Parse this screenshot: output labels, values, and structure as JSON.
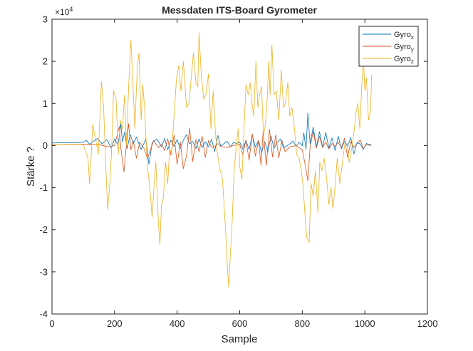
{
  "chart_data": {
    "type": "line",
    "title": "Messdaten ITS-Board Gyrometer",
    "xlabel": "Sample",
    "ylabel": "Stärke ?",
    "xlim": [
      0,
      1200
    ],
    "ylim": [
      -40000,
      30000
    ],
    "x_ticks": [
      0,
      200,
      400,
      600,
      800,
      1000,
      1200
    ],
    "y_ticks": [
      -40000,
      -30000,
      -20000,
      -10000,
      0,
      10000,
      20000,
      30000
    ],
    "y_tick_labels": [
      "-4",
      "-3",
      "-2",
      "-1",
      "0",
      "1",
      "2",
      "3"
    ],
    "y_exponent_base": "×10",
    "y_exponent_power": "4",
    "grid": false,
    "legend_position": "top-right",
    "series": [
      {
        "name": "Gyro",
        "name_sub": "x",
        "color": "#0072BD",
        "points": [
          [
            0,
            600
          ],
          [
            40,
            700
          ],
          [
            80,
            700
          ],
          [
            100,
            800
          ],
          [
            110,
            1200
          ],
          [
            120,
            300
          ],
          [
            130,
            900
          ],
          [
            145,
            1700
          ],
          [
            160,
            400
          ],
          [
            175,
            1400
          ],
          [
            190,
            -600
          ],
          [
            200,
            1600
          ],
          [
            210,
            300
          ],
          [
            215,
            2200
          ],
          [
            220,
            5200
          ],
          [
            225,
            900
          ],
          [
            232,
            3200
          ],
          [
            240,
            -700
          ],
          [
            250,
            2600
          ],
          [
            260,
            500
          ],
          [
            270,
            2000
          ],
          [
            285,
            -900
          ],
          [
            300,
            1500
          ],
          [
            310,
            -4500
          ],
          [
            320,
            600
          ],
          [
            335,
            1600
          ],
          [
            350,
            -300
          ],
          [
            360,
            1700
          ],
          [
            370,
            -1000
          ],
          [
            380,
            1300
          ],
          [
            390,
            -200
          ],
          [
            400,
            1400
          ],
          [
            410,
            -700
          ],
          [
            420,
            1300
          ],
          [
            430,
            2600
          ],
          [
            440,
            400
          ],
          [
            450,
            1000
          ],
          [
            460,
            -700
          ],
          [
            470,
            1600
          ],
          [
            480,
            -500
          ],
          [
            490,
            900
          ],
          [
            500,
            -300
          ],
          [
            510,
            1500
          ],
          [
            520,
            -1400
          ],
          [
            530,
            2400
          ],
          [
            540,
            -200
          ],
          [
            550,
            500
          ],
          [
            560,
            1000
          ],
          [
            570,
            -300
          ],
          [
            580,
            700
          ],
          [
            590,
            500
          ],
          [
            600,
            800
          ],
          [
            610,
            -800
          ],
          [
            620,
            1200
          ],
          [
            630,
            -1000
          ],
          [
            640,
            2500
          ],
          [
            650,
            -400
          ],
          [
            660,
            1200
          ],
          [
            670,
            -1700
          ],
          [
            680,
            900
          ],
          [
            690,
            -1400
          ],
          [
            700,
            2200
          ],
          [
            710,
            -600
          ],
          [
            720,
            700
          ],
          [
            730,
            1600
          ],
          [
            740,
            -600
          ],
          [
            760,
            400
          ],
          [
            770,
            1100
          ],
          [
            780,
            -200
          ],
          [
            790,
            800
          ],
          [
            800,
            -100
          ],
          [
            805,
            3000
          ],
          [
            812,
            -900
          ],
          [
            818,
            7700
          ],
          [
            825,
            400
          ],
          [
            835,
            4400
          ],
          [
            845,
            -300
          ],
          [
            855,
            3300
          ],
          [
            865,
            -400
          ],
          [
            875,
            3100
          ],
          [
            885,
            -600
          ],
          [
            895,
            1800
          ],
          [
            905,
            -1200
          ],
          [
            915,
            2200
          ],
          [
            925,
            -800
          ],
          [
            935,
            1000
          ],
          [
            945,
            -200
          ],
          [
            955,
            1900
          ],
          [
            965,
            -2000
          ],
          [
            975,
            700
          ],
          [
            985,
            400
          ],
          [
            995,
            -900
          ],
          [
            1005,
            500
          ],
          [
            1015,
            200
          ],
          [
            1020,
            300
          ]
        ]
      },
      {
        "name": "Gyro",
        "name_sub": "y",
        "color": "#D95319",
        "points": [
          [
            0,
            200
          ],
          [
            50,
            300
          ],
          [
            100,
            300
          ],
          [
            150,
            200
          ],
          [
            180,
            -300
          ],
          [
            200,
            0
          ],
          [
            210,
            3000
          ],
          [
            215,
            4500
          ],
          [
            220,
            -500
          ],
          [
            230,
            -6300
          ],
          [
            235,
            -2000
          ],
          [
            245,
            5200
          ],
          [
            252,
            -1000
          ],
          [
            260,
            1100
          ],
          [
            270,
            -3000
          ],
          [
            280,
            800
          ],
          [
            295,
            -800
          ],
          [
            305,
            -3100
          ],
          [
            315,
            -1000
          ],
          [
            325,
            1200
          ],
          [
            340,
            -500
          ],
          [
            350,
            400
          ],
          [
            360,
            -1200
          ],
          [
            370,
            1600
          ],
          [
            380,
            -2300
          ],
          [
            390,
            2500
          ],
          [
            400,
            -4500
          ],
          [
            410,
            900
          ],
          [
            420,
            -5500
          ],
          [
            430,
            -2500
          ],
          [
            440,
            4200
          ],
          [
            450,
            -3800
          ],
          [
            460,
            1500
          ],
          [
            470,
            -1500
          ],
          [
            480,
            2200
          ],
          [
            490,
            -2800
          ],
          [
            500,
            1200
          ],
          [
            510,
            -500
          ],
          [
            520,
            -300
          ],
          [
            530,
            500
          ],
          [
            540,
            -200
          ],
          [
            560,
            -500
          ],
          [
            580,
            0
          ],
          [
            600,
            300
          ],
          [
            610,
            -2200
          ],
          [
            620,
            1300
          ],
          [
            630,
            -3500
          ],
          [
            640,
            2800
          ],
          [
            650,
            -2500
          ],
          [
            660,
            1200
          ],
          [
            668,
            -4700
          ],
          [
            675,
            3500
          ],
          [
            685,
            -4700
          ],
          [
            695,
            3900
          ],
          [
            705,
            -2700
          ],
          [
            715,
            2500
          ],
          [
            725,
            -2900
          ],
          [
            735,
            1200
          ],
          [
            745,
            -1500
          ],
          [
            760,
            -300
          ],
          [
            780,
            0
          ],
          [
            800,
            -1000
          ],
          [
            810,
            -4800
          ],
          [
            818,
            -8400
          ],
          [
            825,
            -300
          ],
          [
            835,
            3300
          ],
          [
            845,
            -600
          ],
          [
            855,
            2200
          ],
          [
            865,
            -500
          ],
          [
            875,
            900
          ],
          [
            885,
            -800
          ],
          [
            895,
            500
          ],
          [
            905,
            -200
          ],
          [
            915,
            800
          ],
          [
            925,
            -500
          ],
          [
            935,
            1700
          ],
          [
            945,
            -2800
          ],
          [
            955,
            900
          ],
          [
            965,
            -500
          ],
          [
            975,
            400
          ],
          [
            985,
            1300
          ],
          [
            995,
            -700
          ],
          [
            1005,
            200
          ],
          [
            1020,
            0
          ]
        ]
      },
      {
        "name": "Gyro",
        "name_sub": "z",
        "color": "#EDB120",
        "points": [
          [
            0,
            200
          ],
          [
            60,
            300
          ],
          [
            100,
            200
          ],
          [
            115,
            -3000
          ],
          [
            120,
            -9000
          ],
          [
            125,
            -3000
          ],
          [
            130,
            5000
          ],
          [
            138,
            2000
          ],
          [
            148,
            -2000
          ],
          [
            158,
            15200
          ],
          [
            165,
            9000
          ],
          [
            172,
            -5000
          ],
          [
            178,
            -15300
          ],
          [
            185,
            -9000
          ],
          [
            190,
            -2000
          ],
          [
            197,
            13000
          ],
          [
            205,
            11000
          ],
          [
            212,
            -2000
          ],
          [
            218,
            6000
          ],
          [
            225,
            4000
          ],
          [
            232,
            12000
          ],
          [
            238,
            0
          ],
          [
            245,
            14000
          ],
          [
            252,
            25000
          ],
          [
            258,
            16000
          ],
          [
            265,
            4000
          ],
          [
            272,
            18000
          ],
          [
            278,
            22000
          ],
          [
            285,
            6000
          ],
          [
            290,
            14500
          ],
          [
            296,
            9000
          ],
          [
            305,
            -5000
          ],
          [
            310,
            -8000
          ],
          [
            315,
            -12000
          ],
          [
            320,
            -17000
          ],
          [
            325,
            -11000
          ],
          [
            332,
            -4000
          ],
          [
            340,
            -18000
          ],
          [
            345,
            -23600
          ],
          [
            350,
            -14000
          ],
          [
            356,
            -12500
          ],
          [
            363,
            -4000
          ],
          [
            370,
            -9000
          ],
          [
            376,
            -700
          ],
          [
            382,
            -2000
          ],
          [
            390,
            7000
          ],
          [
            398,
            16000
          ],
          [
            405,
            19000
          ],
          [
            412,
            13000
          ],
          [
            420,
            20000
          ],
          [
            430,
            9000
          ],
          [
            438,
            10000
          ],
          [
            445,
            16000
          ],
          [
            452,
            22000
          ],
          [
            460,
            15000
          ],
          [
            466,
            14000
          ],
          [
            470,
            26800
          ],
          [
            477,
            17000
          ],
          [
            485,
            11000
          ],
          [
            492,
            12000
          ],
          [
            500,
            17000
          ],
          [
            508,
            4000
          ],
          [
            515,
            13000
          ],
          [
            522,
            3500
          ],
          [
            528,
            -1500
          ],
          [
            535,
            -5000
          ],
          [
            545,
            -8000
          ],
          [
            555,
            -20000
          ],
          [
            560,
            -28000
          ],
          [
            565,
            -33700
          ],
          [
            570,
            -26000
          ],
          [
            576,
            -18000
          ],
          [
            582,
            -6000
          ],
          [
            588,
            -1000
          ],
          [
            595,
            4000
          ],
          [
            600,
            -5000
          ],
          [
            607,
            -8000
          ],
          [
            614,
            4000
          ],
          [
            620,
            14500
          ],
          [
            627,
            12000
          ],
          [
            633,
            15000
          ],
          [
            640,
            9500
          ],
          [
            645,
            7000
          ],
          [
            652,
            20000
          ],
          [
            658,
            9000
          ],
          [
            663,
            12000
          ],
          [
            670,
            14000
          ],
          [
            676,
            2000
          ],
          [
            682,
            5000
          ],
          [
            688,
            11000
          ],
          [
            693,
            20000
          ],
          [
            697,
            12000
          ],
          [
            703,
            23900
          ],
          [
            710,
            12000
          ],
          [
            717,
            13000
          ],
          [
            725,
            6000
          ],
          [
            733,
            18000
          ],
          [
            740,
            9000
          ],
          [
            746,
            10000
          ],
          [
            754,
            15000
          ],
          [
            760,
            7000
          ],
          [
            767,
            9000
          ],
          [
            775,
            4000
          ],
          [
            782,
            -2000
          ],
          [
            790,
            -3000
          ],
          [
            797,
            -6000
          ],
          [
            803,
            -10000
          ],
          [
            810,
            -18000
          ],
          [
            815,
            -22000
          ],
          [
            822,
            -23000
          ],
          [
            828,
            -9000
          ],
          [
            835,
            -12000
          ],
          [
            842,
            -6000
          ],
          [
            850,
            -16000
          ],
          [
            856,
            -4000
          ],
          [
            863,
            -6000
          ],
          [
            870,
            -3000
          ],
          [
            878,
            -8000
          ],
          [
            885,
            -14000
          ],
          [
            892,
            -10000
          ],
          [
            898,
            -15000
          ],
          [
            905,
            -9500
          ],
          [
            912,
            -3000
          ],
          [
            920,
            -9000
          ],
          [
            928,
            -4500
          ],
          [
            935,
            0
          ],
          [
            943,
            500
          ],
          [
            950,
            -4000
          ],
          [
            958,
            -700
          ],
          [
            965,
            3000
          ],
          [
            972,
            8000
          ],
          [
            978,
            10000
          ],
          [
            984,
            4000
          ],
          [
            990,
            14000
          ],
          [
            995,
            21500
          ],
          [
            1000,
            13000
          ],
          [
            1005,
            16000
          ],
          [
            1012,
            6000
          ],
          [
            1018,
            8000
          ],
          [
            1022,
            16800
          ]
        ]
      }
    ]
  }
}
